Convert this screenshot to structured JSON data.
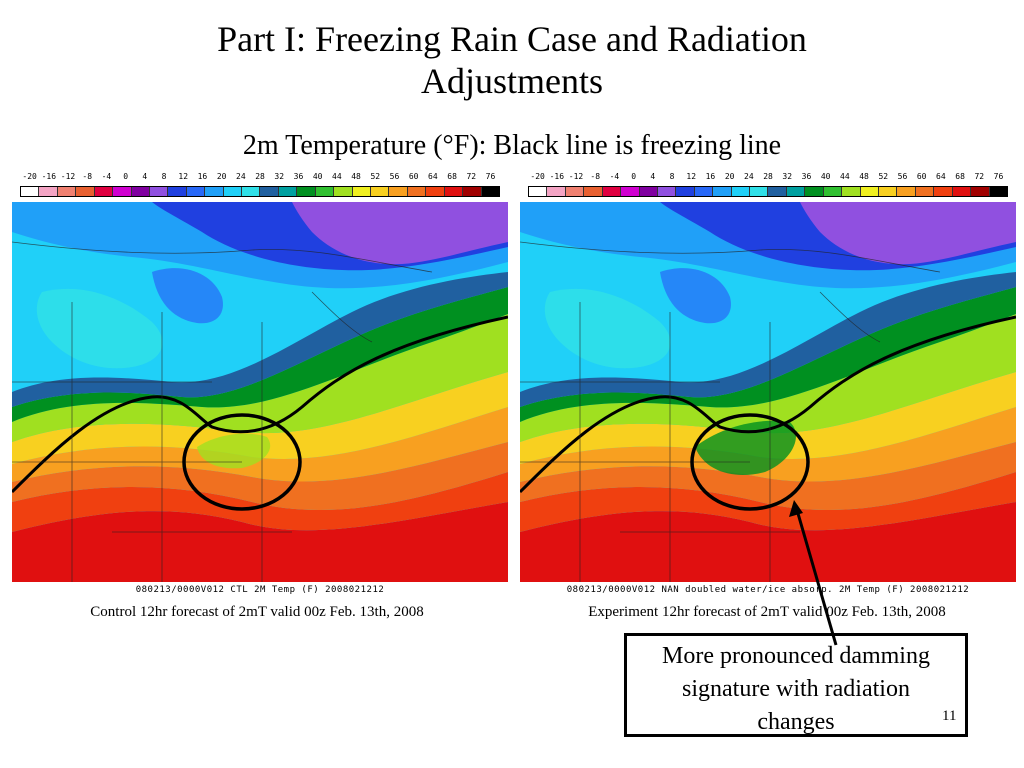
{
  "slide": {
    "title_line1": "Part I: Freezing Rain Case and Radiation",
    "title_line2": "Adjustments",
    "subtitle": "2m Temperature (°F): Black line is freezing line",
    "number": "11"
  },
  "colorbar": {
    "labels": [
      "-20",
      "-16",
      "-12",
      "-8",
      "-4",
      "0",
      "4",
      "8",
      "12",
      "16",
      "20",
      "24",
      "28",
      "32",
      "36",
      "40",
      "44",
      "48",
      "52",
      "56",
      "60",
      "64",
      "68",
      "72",
      "76"
    ],
    "colors": [
      "#ffffff",
      "#f4a4c4",
      "#f08070",
      "#e86030",
      "#e00040",
      "#d000d0",
      "#8000a0",
      "#9050e0",
      "#2040e0",
      "#2868f8",
      "#20a0f8",
      "#20d0f8",
      "#30e0e8",
      "#2060a0",
      "#00a0a0",
      "#009020",
      "#30c030",
      "#a0e020",
      "#f0f020",
      "#f8d020",
      "#f8a020",
      "#f07020",
      "#f04010",
      "#e01010",
      "#a00000",
      "#000000"
    ]
  },
  "left_panel": {
    "stamp": "080213/0000V012 CTL 2M Temp (F)   2008021212",
    "caption": "Control 12hr forecast of 2mT valid 00z Feb. 13th, 2008"
  },
  "right_panel": {
    "stamp": "080213/0000V012 NAN doubled water/ice absorp. 2M Temp (F)  2008021212",
    "caption": "Experiment 12hr forecast of 2mT valid 00z Feb. 13th, 2008"
  },
  "callout": {
    "line1": "More pronounced damming",
    "line2": "signature with radiation",
    "line3": "changes"
  },
  "icons": {
    "highlight": "circle-highlight-icon",
    "pointer": "arrow-pointer-icon"
  }
}
